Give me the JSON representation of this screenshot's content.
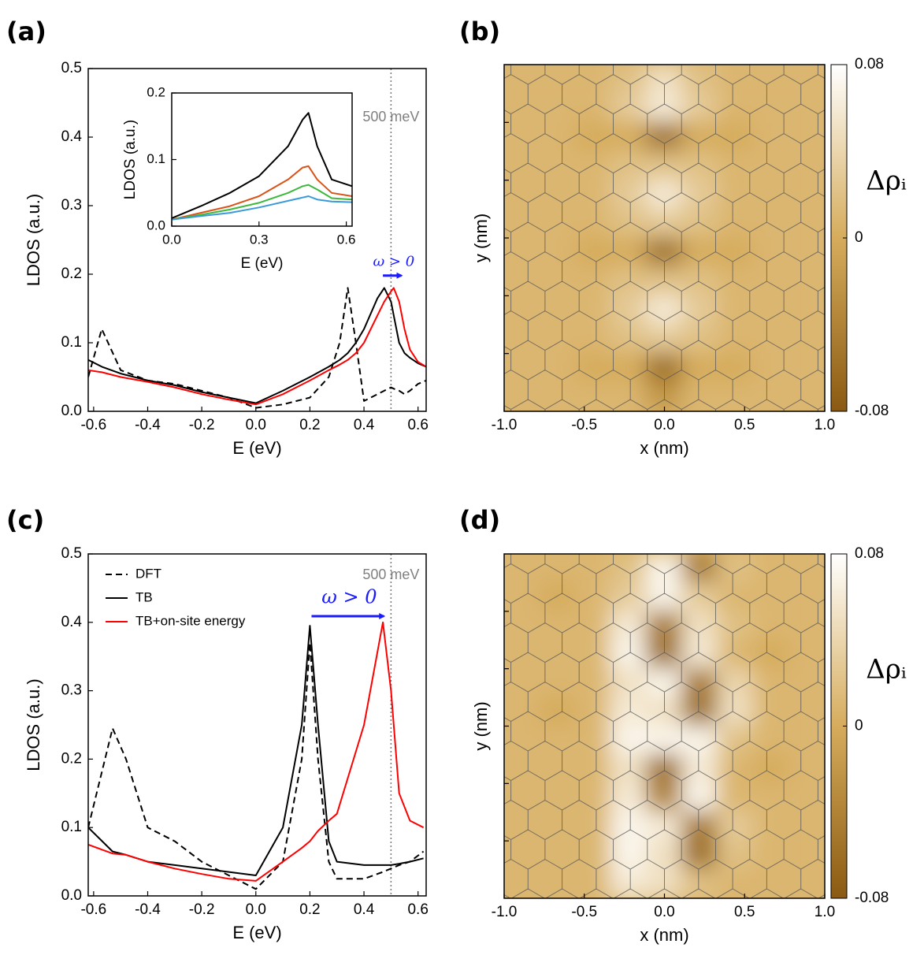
{
  "chart_data": [
    {
      "type": "line",
      "panel": "(a)",
      "xlabel": "E (eV)",
      "ylabel": "LDOS (a.u.)",
      "xlim": [
        -0.62,
        0.63
      ],
      "ylim": [
        0,
        0.5
      ],
      "xticks": [
        -0.6,
        -0.4,
        -0.2,
        {
          "value": 0,
          "label": "0.0"
        },
        0.2,
        0.4,
        0.6
      ],
      "yticks": [
        {
          "value": 0,
          "label": "0.0"
        },
        0.1,
        0.2,
        0.3,
        0.4,
        0.5
      ],
      "x": [
        -0.62,
        -0.57,
        -0.5,
        -0.4,
        -0.3,
        -0.2,
        -0.1,
        0,
        0.1,
        0.2,
        0.27,
        0.31,
        0.34,
        0.37,
        0.4,
        0.45,
        0.475,
        0.5,
        0.51,
        0.53,
        0.55,
        0.57,
        0.6,
        0.63
      ],
      "series": [
        {
          "color": "#000000",
          "dash": true,
          "values": [
            0.05,
            0.12,
            0.06,
            0.045,
            0.04,
            0.03,
            0.02,
            0.005,
            0.01,
            0.02,
            0.05,
            0.1,
            0.18,
            0.1,
            0.015,
            0.025,
            0.03,
            0.035,
            0.033,
            0.03,
            0.025,
            0.03,
            0.04,
            0.045
          ]
        },
        {
          "color": "#000000",
          "dash": false,
          "values": [
            0.075,
            0.065,
            0.055,
            0.045,
            0.038,
            0.028,
            0.02,
            0.012,
            0.03,
            0.05,
            0.065,
            0.075,
            0.085,
            0.1,
            0.12,
            0.165,
            0.18,
            0.16,
            0.14,
            0.1,
            0.085,
            0.078,
            0.07,
            0.065
          ]
        },
        {
          "color": "#ff0000",
          "dash": false,
          "values": [
            0.06,
            0.057,
            0.05,
            0.043,
            0.035,
            0.025,
            0.017,
            0.01,
            0.025,
            0.045,
            0.06,
            0.068,
            0.075,
            0.085,
            0.1,
            0.14,
            0.16,
            0.175,
            0.18,
            0.16,
            0.12,
            0.09,
            0.072,
            0.065
          ]
        }
      ],
      "vline": 0.5,
      "vline_label": "500 meV",
      "arrow": {
        "label": "ω > 0",
        "x": [
          0.47,
          0.55
        ],
        "y": 0.198,
        "color": "#1a1aff"
      }
    },
    {
      "type": "line",
      "xlabel": "E (eV)",
      "ylabel": "LDOS (a.u.)",
      "xlim": [
        0,
        0.62
      ],
      "ylim": [
        0,
        0.2
      ],
      "xticks": [
        {
          "value": 0,
          "label": "0.0"
        },
        0.3,
        0.6
      ],
      "yticks": [
        {
          "value": 0,
          "label": "0.0"
        },
        0.1,
        0.2
      ],
      "x": [
        0,
        0.1,
        0.2,
        0.3,
        0.4,
        0.45,
        0.47,
        0.5,
        0.55,
        0.62
      ],
      "series": [
        {
          "color": "#000000",
          "dash": false,
          "values": [
            0.012,
            0.03,
            0.05,
            0.075,
            0.12,
            0.16,
            0.17,
            0.12,
            0.07,
            0.06
          ]
        },
        {
          "color": "#d95319",
          "dash": false,
          "values": [
            0.01,
            0.02,
            0.03,
            0.045,
            0.07,
            0.088,
            0.09,
            0.07,
            0.05,
            0.045
          ]
        },
        {
          "color": "#3cb83c",
          "dash": false,
          "values": [
            0.01,
            0.017,
            0.025,
            0.035,
            0.05,
            0.06,
            0.062,
            0.055,
            0.042,
            0.04
          ]
        },
        {
          "color": "#3a9ad9",
          "dash": false,
          "values": [
            0.01,
            0.015,
            0.02,
            0.028,
            0.038,
            0.043,
            0.045,
            0.04,
            0.037,
            0.036
          ]
        }
      ]
    },
    {
      "type": "heatmap",
      "panel": "(b)",
      "xlabel": "x (nm)",
      "ylabel": "y (nm)",
      "xlim": [
        -1,
        1
      ],
      "xticks": [
        {
          "value": -1,
          "label": "-1.0"
        },
        -0.5,
        {
          "value": 0,
          "label": "0.0"
        },
        0.5,
        {
          "value": 1,
          "label": "1.0"
        }
      ],
      "clim": [
        -0.08,
        0.08
      ],
      "cticks": [
        0.08,
        0,
        -0.08
      ],
      "colorbar_label": "Δρᵢ",
      "cmap": [
        "#8a5a12",
        "#d6ac5c",
        "#ffffff"
      ],
      "z": [
        [
          0.01,
          0.01,
          0.01,
          0.02,
          0.05,
          0.02,
          0.01,
          0.01,
          0.01
        ],
        [
          0.01,
          0.01,
          0.01,
          0.03,
          0.06,
          0.03,
          0.01,
          0.01,
          0.01
        ],
        [
          0.01,
          0.01,
          0,
          0,
          -0.06,
          0,
          0,
          0.01,
          0.01
        ],
        [
          0.01,
          0.01,
          0.01,
          0.02,
          0.02,
          0.02,
          0.01,
          0.01,
          0.01
        ],
        [
          0.01,
          0.01,
          0.01,
          0.03,
          0.06,
          0.03,
          0.01,
          0.01,
          0.01
        ],
        [
          0.01,
          0.01,
          0.01,
          0.02,
          0.03,
          0.02,
          0.01,
          0.01,
          0.01
        ],
        [
          0.01,
          0.01,
          0,
          0,
          -0.06,
          0,
          0,
          0.01,
          0.01
        ],
        [
          0.01,
          0.01,
          0.01,
          0.02,
          0.02,
          0.02,
          0.01,
          0.01,
          0.01
        ],
        [
          0.01,
          0.01,
          0.01,
          0.03,
          0.06,
          0.03,
          0.01,
          0.01,
          0.01
        ],
        [
          0.01,
          0.01,
          0.01,
          0.02,
          0.03,
          0.02,
          0.01,
          0.01,
          0.01
        ],
        [
          0.01,
          0.01,
          0,
          0,
          -0.06,
          0,
          0,
          0.01,
          0.01
        ],
        [
          0.01,
          0.01,
          0.01,
          0.01,
          -0.02,
          0.01,
          0.01,
          0.01,
          0.01
        ]
      ]
    },
    {
      "type": "line",
      "panel": "(c)",
      "xlabel": "E (eV)",
      "ylabel": "LDOS (a.u.)",
      "xlim": [
        -0.62,
        0.63
      ],
      "ylim": [
        0,
        0.5
      ],
      "xticks": [
        -0.6,
        -0.4,
        -0.2,
        {
          "value": 0,
          "label": "0.0"
        },
        0.2,
        0.4,
        0.6
      ],
      "yticks": [
        {
          "value": 0,
          "label": "0.0"
        },
        0.1,
        0.2,
        0.3,
        0.4,
        0.5
      ],
      "x": [
        -0.62,
        -0.53,
        -0.48,
        -0.4,
        -0.3,
        -0.2,
        -0.1,
        0,
        0.1,
        0.17,
        0.2,
        0.23,
        0.27,
        0.3,
        0.4,
        0.47,
        0.5,
        0.53,
        0.57,
        0.62
      ],
      "series": [
        {
          "name": "DFT",
          "color": "#000000",
          "dash": true,
          "values": [
            0.1,
            0.245,
            0.2,
            0.1,
            0.08,
            0.05,
            0.03,
            0.01,
            0.05,
            0.2,
            0.37,
            0.2,
            0.05,
            0.025,
            0.025,
            0.035,
            0.04,
            0.045,
            0.05,
            0.065
          ]
        },
        {
          "name": "TB",
          "color": "#000000",
          "dash": false,
          "values": [
            0.1,
            0.065,
            0.06,
            0.05,
            0.045,
            0.04,
            0.035,
            0.03,
            0.1,
            0.25,
            0.395,
            0.25,
            0.08,
            0.05,
            0.045,
            0.045,
            0.045,
            0.047,
            0.05,
            0.055
          ]
        },
        {
          "name": "TB+on-site energy",
          "color": "#ff0000",
          "dash": false,
          "values": [
            0.075,
            0.062,
            0.06,
            0.05,
            0.04,
            0.032,
            0.025,
            0.022,
            0.05,
            0.07,
            0.08,
            0.095,
            0.11,
            0.12,
            0.25,
            0.4,
            0.3,
            0.15,
            0.11,
            0.1
          ]
        }
      ],
      "legend": "upper left",
      "vline": 0.5,
      "vline_label": "500 meV",
      "arrow": {
        "label": "ω > 0",
        "x": [
          0.206,
          0.485
        ],
        "y": 0.409,
        "color": "#1a1aff"
      }
    },
    {
      "type": "heatmap",
      "panel": "(d)",
      "xlabel": "x (nm)",
      "ylabel": "y (nm)",
      "xlim": [
        -1,
        1
      ],
      "xticks": [
        {
          "value": -1,
          "label": "-1.0"
        },
        -0.5,
        {
          "value": 0,
          "label": "0.0"
        },
        0.5,
        {
          "value": 1,
          "label": "1.0"
        }
      ],
      "clim": [
        -0.08,
        0.08
      ],
      "cticks": [
        0.08,
        0,
        -0.08
      ],
      "colorbar_label": "Δρᵢ",
      "cmap": [
        "#8a5a12",
        "#d6ac5c",
        "#ffffff"
      ],
      "z": [
        [
          0.01,
          0.01,
          0.01,
          0.02,
          0.07,
          -0.05,
          0.02,
          0.01,
          0.01
        ],
        [
          0.01,
          0,
          0.01,
          0.03,
          0.07,
          0.03,
          0.01,
          0.01,
          0.01
        ],
        [
          0.01,
          0.01,
          0.01,
          0.06,
          -0.05,
          0.05,
          0.02,
          0.01,
          0.01
        ],
        [
          0.01,
          0.01,
          0.01,
          0.07,
          -0.06,
          0.06,
          0.01,
          0,
          0.01
        ],
        [
          0.01,
          0.01,
          0.01,
          0.05,
          0.07,
          -0.05,
          0.04,
          0.01,
          0.01
        ],
        [
          0.01,
          0,
          0.01,
          0.06,
          0.05,
          -0.06,
          0.05,
          0.01,
          0.01
        ],
        [
          0.01,
          0.01,
          0.01,
          0.07,
          0.07,
          0.07,
          0.02,
          0.01,
          0.01
        ],
        [
          0.01,
          0.01,
          0.01,
          0.05,
          -0.06,
          0.06,
          0.01,
          0,
          0.01
        ],
        [
          0.01,
          0.01,
          0.01,
          0.06,
          -0.04,
          0.07,
          0.01,
          0.01,
          0.01
        ],
        [
          0.01,
          0.01,
          0.01,
          0.07,
          0.06,
          -0.05,
          0.03,
          0.01,
          0.01
        ],
        [
          0.01,
          0.01,
          0.01,
          0.07,
          0.05,
          -0.06,
          0.02,
          0.01,
          0.01
        ],
        [
          0.01,
          0.01,
          0.01,
          0.06,
          0.05,
          0.02,
          0.01,
          0.01,
          0.01
        ]
      ]
    }
  ]
}
